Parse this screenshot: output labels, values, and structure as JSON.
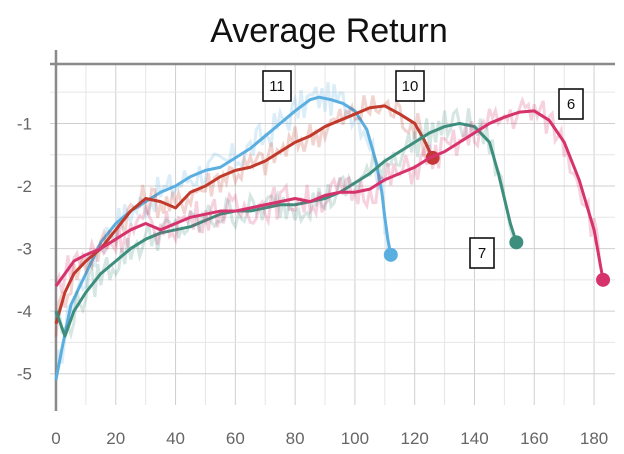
{
  "chart_data": {
    "type": "line",
    "title": "Average Return",
    "xlabel": "",
    "ylabel": "",
    "xlim": [
      -2,
      187
    ],
    "ylim": [
      -5.5,
      -0.05
    ],
    "xticks": [
      0,
      20,
      40,
      60,
      80,
      100,
      120,
      140,
      160,
      180
    ],
    "xtick_labels": [
      "0",
      "20",
      "40",
      "60",
      "80",
      "100",
      "120",
      "140",
      "160",
      "180"
    ],
    "yticks": [
      -1,
      -2,
      -3,
      -4,
      -5
    ],
    "ytick_labels": [
      "-1",
      "-2",
      "-3",
      "-4",
      "-5"
    ],
    "grid": true,
    "series": [
      {
        "name": "11",
        "color": "#5aaee0",
        "x": [
          0,
          2,
          5,
          10,
          15,
          20,
          25,
          30,
          35,
          40,
          45,
          50,
          55,
          60,
          65,
          70,
          75,
          80,
          85,
          88,
          92,
          96,
          100,
          104,
          107,
          109,
          110,
          111,
          112
        ],
        "y": [
          -5.1,
          -4.6,
          -3.9,
          -3.4,
          -2.9,
          -2.6,
          -2.4,
          -2.25,
          -2.1,
          -2.0,
          -1.85,
          -1.75,
          -1.7,
          -1.55,
          -1.4,
          -1.2,
          -1.0,
          -0.8,
          -0.62,
          -0.58,
          -0.62,
          -0.68,
          -0.8,
          -1.1,
          -1.6,
          -2.1,
          -2.5,
          -2.85,
          -3.1
        ]
      },
      {
        "name": "10",
        "color": "#c0392b",
        "x": [
          0,
          3,
          6,
          10,
          15,
          20,
          25,
          30,
          35,
          40,
          45,
          50,
          55,
          60,
          65,
          70,
          75,
          80,
          85,
          90,
          95,
          100,
          105,
          110,
          115,
          120,
          123,
          126
        ],
        "y": [
          -4.2,
          -3.7,
          -3.4,
          -3.2,
          -3.0,
          -2.7,
          -2.4,
          -2.2,
          -2.25,
          -2.35,
          -2.1,
          -2.0,
          -1.85,
          -1.75,
          -1.7,
          -1.6,
          -1.45,
          -1.3,
          -1.2,
          -1.05,
          -0.95,
          -0.85,
          -0.75,
          -0.72,
          -0.85,
          -1.0,
          -1.25,
          -1.55
        ]
      },
      {
        "name": "7",
        "color": "#3e8e7e",
        "x": [
          0,
          3,
          6,
          10,
          15,
          20,
          25,
          30,
          35,
          40,
          45,
          50,
          55,
          60,
          65,
          70,
          75,
          80,
          85,
          90,
          95,
          100,
          105,
          110,
          115,
          120,
          125,
          130,
          135,
          140,
          145,
          148,
          150,
          152,
          154
        ],
        "y": [
          -4.0,
          -4.4,
          -4.0,
          -3.7,
          -3.4,
          -3.2,
          -3.0,
          -2.85,
          -2.75,
          -2.7,
          -2.65,
          -2.55,
          -2.45,
          -2.4,
          -2.4,
          -2.35,
          -2.3,
          -2.3,
          -2.25,
          -2.2,
          -2.1,
          -1.95,
          -1.8,
          -1.6,
          -1.45,
          -1.3,
          -1.15,
          -1.05,
          -1.0,
          -1.05,
          -1.3,
          -1.8,
          -2.2,
          -2.6,
          -2.9
        ]
      },
      {
        "name": "6",
        "color": "#d6336c",
        "x": [
          0,
          3,
          6,
          10,
          15,
          20,
          25,
          30,
          35,
          40,
          45,
          50,
          55,
          60,
          65,
          70,
          75,
          80,
          85,
          90,
          95,
          100,
          105,
          110,
          115,
          120,
          125,
          130,
          135,
          140,
          145,
          150,
          155,
          160,
          165,
          170,
          175,
          180,
          183
        ],
        "y": [
          -3.6,
          -3.4,
          -3.2,
          -3.1,
          -3.0,
          -2.85,
          -2.7,
          -2.6,
          -2.7,
          -2.6,
          -2.5,
          -2.45,
          -2.4,
          -2.4,
          -2.35,
          -2.3,
          -2.25,
          -2.2,
          -2.25,
          -2.15,
          -2.1,
          -2.1,
          -2.05,
          -1.9,
          -1.8,
          -1.7,
          -1.55,
          -1.45,
          -1.3,
          -1.15,
          -1.0,
          -0.9,
          -0.82,
          -0.8,
          -0.95,
          -1.3,
          -1.9,
          -2.7,
          -3.5
        ]
      }
    ]
  }
}
